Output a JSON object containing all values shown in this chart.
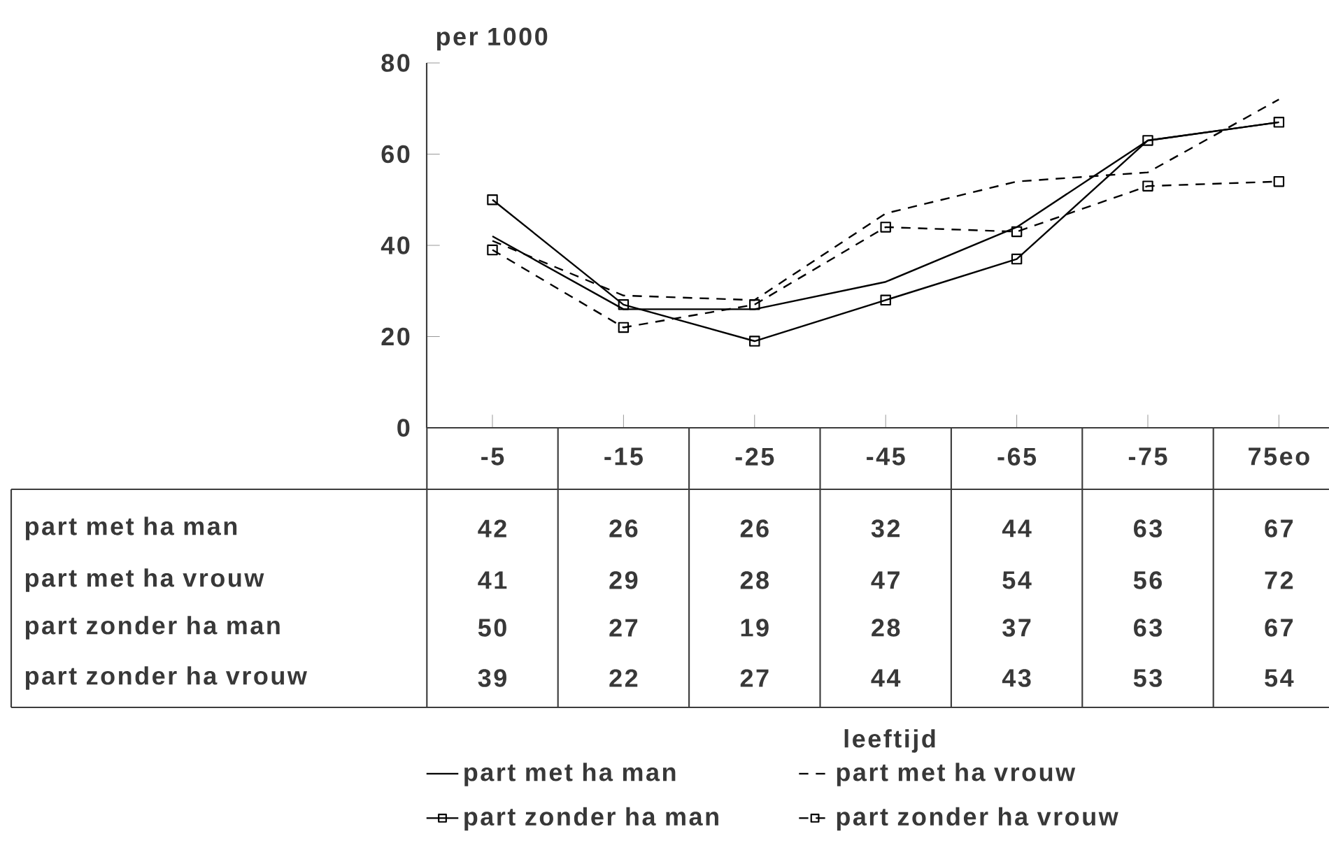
{
  "chart_data": {
    "type": "line",
    "ylabel": "per 1000",
    "annotations": [
      "leeftijd"
    ],
    "categories": [
      "-5",
      "-15",
      "-25",
      "-45",
      "-65",
      "-75",
      "75eo"
    ],
    "ylim": [
      0,
      80
    ],
    "yticks": [
      0,
      20,
      40,
      60,
      80
    ],
    "series": [
      {
        "name": "part met ha man",
        "color": "#000000",
        "marker": "none",
        "line_style": "solid",
        "values": [
          42,
          26,
          26,
          32,
          44,
          63,
          67
        ]
      },
      {
        "name": "part met ha vrouw",
        "color": "#000000",
        "marker": "none",
        "line_style": "dashed",
        "values": [
          41,
          29,
          28,
          47,
          54,
          56,
          72
        ]
      },
      {
        "name": "part zonder ha man",
        "color": "#000000",
        "marker": "square",
        "line_style": "solid",
        "values": [
          50,
          27,
          19,
          28,
          37,
          63,
          67
        ]
      },
      {
        "name": "part zonder ha vrouw",
        "color": "#000000",
        "marker": "square",
        "line_style": "dashed",
        "values": [
          39,
          22,
          27,
          44,
          43,
          53,
          54
        ]
      }
    ],
    "data_labels": true,
    "legend": "bottom"
  }
}
